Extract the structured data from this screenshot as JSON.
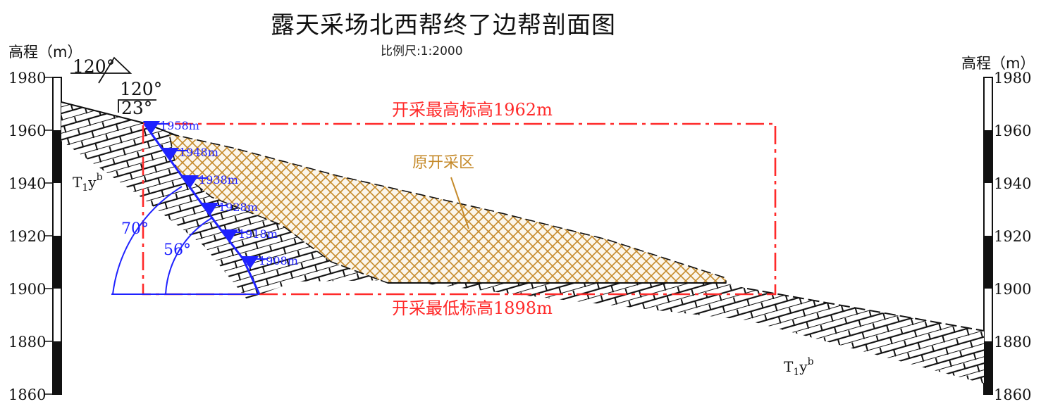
{
  "title": "露天采场北西帮终了边帮剖面图",
  "scale": "比例尺:1:2000",
  "left_axis_label": "高程（m）",
  "right_axis_label": "高程（m）",
  "ticks": [
    "1980",
    "1960",
    "1940",
    "1920",
    "1900",
    "1880",
    "1860"
  ],
  "angle_top": "120°",
  "angle_mid": "120°",
  "angle_23": "23°",
  "max_elev": "开采最高标高1962m",
  "min_elev": "开采最低标高1898m",
  "mined_area": "原开采区",
  "bench_labels": [
    "1958m",
    "1948m",
    "1938m",
    "1928m",
    "1918m",
    "1908m"
  ],
  "angle_70": "70°",
  "angle_56": "56°",
  "strata_left": {
    "base": "T",
    "sub1": "1",
    "base2": "y",
    "sup": "b"
  },
  "strata_right": {
    "base": "T",
    "sub1": "1",
    "base2": "y",
    "sup": "b"
  },
  "colors": {
    "red": "#ff2a2a",
    "blue": "#1f22ff",
    "brown": "#c58a2a",
    "black": "#111111"
  }
}
